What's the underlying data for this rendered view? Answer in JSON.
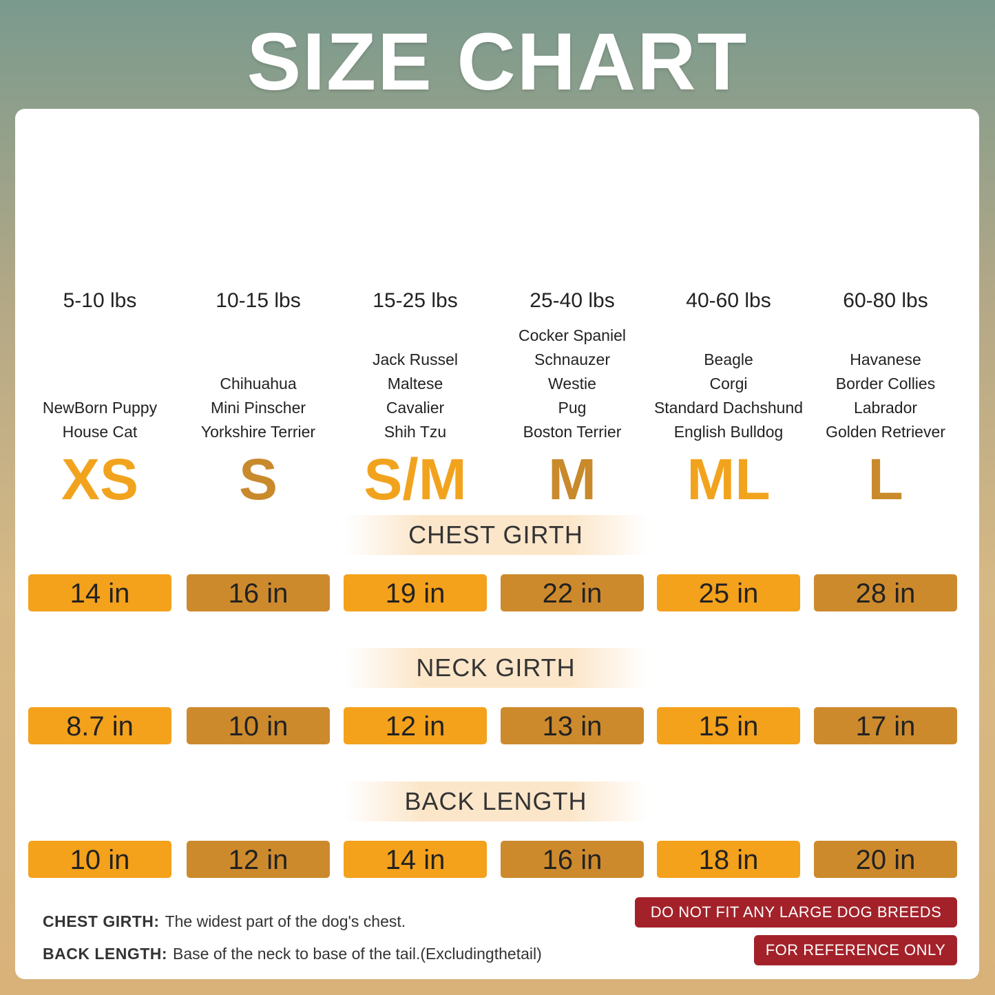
{
  "header": {
    "title": "SIZE CHART"
  },
  "sizes": [
    {
      "weight": "5-10 lbs",
      "breeds": [
        "NewBorn Puppy",
        "House Cat"
      ],
      "label": "XS"
    },
    {
      "weight": "10-15 lbs",
      "breeds": [
        "Chihuahua",
        "Mini Pinscher",
        "Yorkshire Terrier"
      ],
      "label": "S"
    },
    {
      "weight": "15-25 lbs",
      "breeds": [
        "Jack Russel",
        "Maltese",
        "Cavalier",
        "Shih Tzu"
      ],
      "label": "S/M"
    },
    {
      "weight": "25-40 lbs",
      "breeds": [
        "Cocker Spaniel",
        "Schnauzer",
        "Westie",
        "Pug",
        "Boston Terrier"
      ],
      "label": "M"
    },
    {
      "weight": "40-60 lbs",
      "breeds": [
        "Beagle",
        "Corgi",
        "Standard Dachshund",
        "English Bulldog"
      ],
      "label": "ML"
    },
    {
      "weight": "60-80 lbs",
      "breeds": [
        "Havanese",
        "Border Collies",
        "Labrador",
        "Golden Retriever"
      ],
      "label": "L"
    }
  ],
  "sections": [
    {
      "heading": "CHEST GIRTH",
      "values": [
        "14 in",
        "16 in",
        "19 in",
        "22 in",
        "25 in",
        "28 in"
      ]
    },
    {
      "heading": "NECK GIRTH",
      "values": [
        "8.7 in",
        "10 in",
        "12 in",
        "13 in",
        "15 in",
        "17 in"
      ]
    },
    {
      "heading": "BACK LENGTH",
      "values": [
        "10 in",
        "12 in",
        "14 in",
        "16 in",
        "18 in",
        "20 in"
      ]
    }
  ],
  "notes": [
    {
      "term": "CHEST GIRTH:",
      "text": "The widest part of the dog's chest."
    },
    {
      "term": "BACK LENGTH:",
      "text": "Base of the neck to base of the tail.(Excludingthetail)"
    }
  ],
  "badges": [
    "DO NOT FIT ANY LARGE DOG BREEDS",
    "FOR REFERENCE ONLY"
  ]
}
